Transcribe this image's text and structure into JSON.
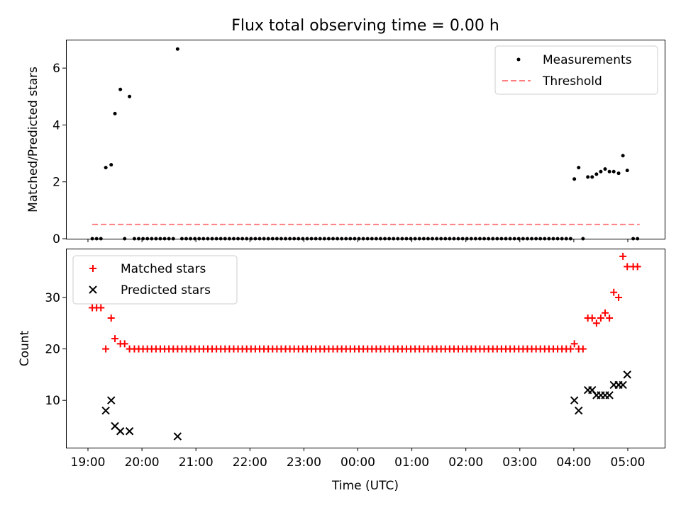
{
  "title": "Flux total observing time = 0.00 h",
  "xlabel": "Time (UTC)",
  "x_ticks": [
    "19:00",
    "20:00",
    "21:00",
    "22:00",
    "23:00",
    "00:00",
    "01:00",
    "02:00",
    "03:00",
    "04:00",
    "05:00"
  ],
  "colors": {
    "measure": "#000000",
    "threshold": "#ff7f7f",
    "matched": "#ff0000",
    "predicted": "#000000"
  },
  "chart_data": [
    {
      "type": "scatter",
      "ylabel": "Matched/Predicted stars",
      "ylim": [
        0,
        7
      ],
      "y_ticks": [
        0,
        2,
        4,
        6
      ],
      "legend": [
        "Measurements",
        "Threshold"
      ],
      "legend_position": "top-right",
      "threshold": {
        "value": 0.5,
        "x_start": 0.08,
        "x_end": 10.22
      },
      "points": [
        [
          0.08,
          0
        ],
        [
          0.16,
          0
        ],
        [
          0.24,
          0
        ],
        [
          0.33,
          2.5
        ],
        [
          0.43,
          2.6
        ],
        [
          0.5,
          4.4
        ],
        [
          0.6,
          5.25
        ],
        [
          0.68,
          0
        ],
        [
          0.77,
          5.0
        ],
        [
          0.86,
          0
        ],
        [
          0.94,
          0
        ],
        [
          1.02,
          0
        ],
        [
          1.1,
          0
        ],
        [
          1.18,
          0
        ],
        [
          1.26,
          0
        ],
        [
          1.34,
          0
        ],
        [
          1.42,
          0
        ],
        [
          1.5,
          0
        ],
        [
          1.58,
          0
        ],
        [
          1.66,
          6.67
        ],
        [
          1.74,
          0
        ],
        [
          1.82,
          0
        ],
        [
          1.9,
          0
        ],
        [
          1.98,
          0
        ],
        [
          2.06,
          0
        ],
        [
          2.14,
          0
        ],
        [
          2.22,
          0
        ],
        [
          2.3,
          0
        ],
        [
          2.38,
          0
        ],
        [
          2.46,
          0
        ],
        [
          2.54,
          0
        ],
        [
          2.62,
          0
        ],
        [
          2.7,
          0
        ],
        [
          2.78,
          0
        ],
        [
          2.86,
          0
        ],
        [
          2.94,
          0
        ],
        [
          3.02,
          0
        ],
        [
          3.1,
          0
        ],
        [
          3.18,
          0
        ],
        [
          3.26,
          0
        ],
        [
          3.34,
          0
        ],
        [
          3.42,
          0
        ],
        [
          3.5,
          0
        ],
        [
          3.58,
          0
        ],
        [
          3.66,
          0
        ],
        [
          3.74,
          0
        ],
        [
          3.82,
          0
        ],
        [
          3.9,
          0
        ],
        [
          3.98,
          0
        ],
        [
          4.06,
          0
        ],
        [
          4.14,
          0
        ],
        [
          4.22,
          0
        ],
        [
          4.3,
          0
        ],
        [
          4.38,
          0
        ],
        [
          4.46,
          0
        ],
        [
          4.54,
          0
        ],
        [
          4.62,
          0
        ],
        [
          4.7,
          0
        ],
        [
          4.78,
          0
        ],
        [
          4.86,
          0
        ],
        [
          4.94,
          0
        ],
        [
          5.02,
          0
        ],
        [
          5.1,
          0
        ],
        [
          5.18,
          0
        ],
        [
          5.26,
          0
        ],
        [
          5.34,
          0
        ],
        [
          5.42,
          0
        ],
        [
          5.5,
          0
        ],
        [
          5.58,
          0
        ],
        [
          5.66,
          0
        ],
        [
          5.74,
          0
        ],
        [
          5.82,
          0
        ],
        [
          5.9,
          0
        ],
        [
          5.98,
          0
        ],
        [
          6.06,
          0
        ],
        [
          6.14,
          0
        ],
        [
          6.22,
          0
        ],
        [
          6.3,
          0
        ],
        [
          6.38,
          0
        ],
        [
          6.46,
          0
        ],
        [
          6.54,
          0
        ],
        [
          6.62,
          0
        ],
        [
          6.7,
          0
        ],
        [
          6.78,
          0
        ],
        [
          6.86,
          0
        ],
        [
          6.94,
          0
        ],
        [
          7.02,
          0
        ],
        [
          7.1,
          0
        ],
        [
          7.18,
          0
        ],
        [
          7.26,
          0
        ],
        [
          7.34,
          0
        ],
        [
          7.42,
          0
        ],
        [
          7.5,
          0
        ],
        [
          7.58,
          0
        ],
        [
          7.66,
          0
        ],
        [
          7.74,
          0
        ],
        [
          7.82,
          0
        ],
        [
          7.9,
          0
        ],
        [
          7.98,
          0
        ],
        [
          8.06,
          0
        ],
        [
          8.14,
          0
        ],
        [
          8.22,
          0
        ],
        [
          8.3,
          0
        ],
        [
          8.38,
          0
        ],
        [
          8.46,
          0
        ],
        [
          8.54,
          0
        ],
        [
          8.62,
          0
        ],
        [
          8.7,
          0
        ],
        [
          8.78,
          0
        ],
        [
          8.86,
          0
        ],
        [
          8.94,
          0
        ],
        [
          9.01,
          2.1
        ],
        [
          9.09,
          2.5
        ],
        [
          9.17,
          0
        ],
        [
          9.26,
          2.17
        ],
        [
          9.34,
          2.17
        ],
        [
          9.42,
          2.27
        ],
        [
          9.5,
          2.36
        ],
        [
          9.58,
          2.45
        ],
        [
          9.66,
          2.36
        ],
        [
          9.74,
          2.36
        ],
        [
          9.83,
          2.3
        ],
        [
          9.91,
          2.92
        ],
        [
          9.99,
          2.4
        ],
        [
          10.1,
          0
        ],
        [
          10.18,
          0
        ]
      ]
    },
    {
      "type": "scatter",
      "ylabel": "Count",
      "ylim": [
        0.8,
        39.5
      ],
      "y_ticks": [
        10,
        20,
        30
      ],
      "legend": [
        "Matched stars",
        "Predicted stars"
      ],
      "legend_position": "top-left",
      "matched": [
        [
          0.08,
          28
        ],
        [
          0.16,
          28
        ],
        [
          0.24,
          28
        ],
        [
          0.33,
          20
        ],
        [
          0.43,
          26
        ],
        [
          0.5,
          22
        ],
        [
          0.6,
          21
        ],
        [
          0.68,
          21
        ],
        [
          0.77,
          20
        ],
        [
          0.86,
          20
        ],
        [
          0.94,
          20
        ],
        [
          1.02,
          20
        ],
        [
          1.1,
          20
        ],
        [
          1.18,
          20
        ],
        [
          1.26,
          20
        ],
        [
          1.34,
          20
        ],
        [
          1.42,
          20
        ],
        [
          1.5,
          20
        ],
        [
          1.58,
          20
        ],
        [
          1.66,
          20
        ],
        [
          1.74,
          20
        ],
        [
          1.82,
          20
        ],
        [
          1.9,
          20
        ],
        [
          1.98,
          20
        ],
        [
          2.06,
          20
        ],
        [
          2.14,
          20
        ],
        [
          2.22,
          20
        ],
        [
          2.3,
          20
        ],
        [
          2.38,
          20
        ],
        [
          2.46,
          20
        ],
        [
          2.54,
          20
        ],
        [
          2.62,
          20
        ],
        [
          2.7,
          20
        ],
        [
          2.78,
          20
        ],
        [
          2.86,
          20
        ],
        [
          2.94,
          20
        ],
        [
          3.02,
          20
        ],
        [
          3.1,
          20
        ],
        [
          3.18,
          20
        ],
        [
          3.26,
          20
        ],
        [
          3.34,
          20
        ],
        [
          3.42,
          20
        ],
        [
          3.5,
          20
        ],
        [
          3.58,
          20
        ],
        [
          3.66,
          20
        ],
        [
          3.74,
          20
        ],
        [
          3.82,
          20
        ],
        [
          3.9,
          20
        ],
        [
          3.98,
          20
        ],
        [
          4.06,
          20
        ],
        [
          4.14,
          20
        ],
        [
          4.22,
          20
        ],
        [
          4.3,
          20
        ],
        [
          4.38,
          20
        ],
        [
          4.46,
          20
        ],
        [
          4.54,
          20
        ],
        [
          4.62,
          20
        ],
        [
          4.7,
          20
        ],
        [
          4.78,
          20
        ],
        [
          4.86,
          20
        ],
        [
          4.94,
          20
        ],
        [
          5.02,
          20
        ],
        [
          5.1,
          20
        ],
        [
          5.18,
          20
        ],
        [
          5.26,
          20
        ],
        [
          5.34,
          20
        ],
        [
          5.42,
          20
        ],
        [
          5.5,
          20
        ],
        [
          5.58,
          20
        ],
        [
          5.66,
          20
        ],
        [
          5.74,
          20
        ],
        [
          5.82,
          20
        ],
        [
          5.9,
          20
        ],
        [
          5.98,
          20
        ],
        [
          6.06,
          20
        ],
        [
          6.14,
          20
        ],
        [
          6.22,
          20
        ],
        [
          6.3,
          20
        ],
        [
          6.38,
          20
        ],
        [
          6.46,
          20
        ],
        [
          6.54,
          20
        ],
        [
          6.62,
          20
        ],
        [
          6.7,
          20
        ],
        [
          6.78,
          20
        ],
        [
          6.86,
          20
        ],
        [
          6.94,
          20
        ],
        [
          7.02,
          20
        ],
        [
          7.1,
          20
        ],
        [
          7.18,
          20
        ],
        [
          7.26,
          20
        ],
        [
          7.34,
          20
        ],
        [
          7.42,
          20
        ],
        [
          7.5,
          20
        ],
        [
          7.58,
          20
        ],
        [
          7.66,
          20
        ],
        [
          7.74,
          20
        ],
        [
          7.82,
          20
        ],
        [
          7.9,
          20
        ],
        [
          7.98,
          20
        ],
        [
          8.06,
          20
        ],
        [
          8.14,
          20
        ],
        [
          8.22,
          20
        ],
        [
          8.3,
          20
        ],
        [
          8.38,
          20
        ],
        [
          8.46,
          20
        ],
        [
          8.54,
          20
        ],
        [
          8.62,
          20
        ],
        [
          8.7,
          20
        ],
        [
          8.78,
          20
        ],
        [
          8.86,
          20
        ],
        [
          8.94,
          20
        ],
        [
          9.01,
          21
        ],
        [
          9.09,
          20
        ],
        [
          9.17,
          20
        ],
        [
          9.26,
          26
        ],
        [
          9.34,
          26
        ],
        [
          9.42,
          25
        ],
        [
          9.5,
          26
        ],
        [
          9.58,
          27
        ],
        [
          9.66,
          26
        ],
        [
          9.74,
          31
        ],
        [
          9.83,
          30
        ],
        [
          9.91,
          38
        ],
        [
          9.99,
          36
        ],
        [
          10.1,
          36
        ],
        [
          10.18,
          36
        ]
      ],
      "predicted": [
        [
          0.33,
          8
        ],
        [
          0.43,
          10
        ],
        [
          0.5,
          5
        ],
        [
          0.6,
          4
        ],
        [
          0.77,
          4
        ],
        [
          1.66,
          3
        ],
        [
          9.01,
          10
        ],
        [
          9.09,
          8
        ],
        [
          9.26,
          12
        ],
        [
          9.34,
          12
        ],
        [
          9.42,
          11
        ],
        [
          9.5,
          11
        ],
        [
          9.58,
          11
        ],
        [
          9.66,
          11
        ],
        [
          9.74,
          13
        ],
        [
          9.83,
          13
        ],
        [
          9.91,
          13
        ],
        [
          9.99,
          15
        ]
      ]
    }
  ]
}
